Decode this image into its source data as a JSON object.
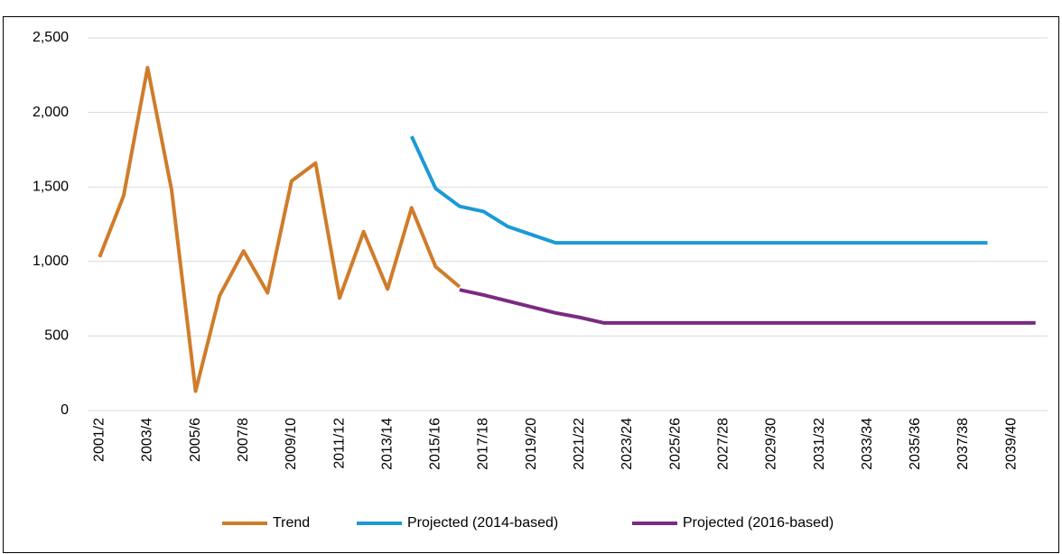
{
  "chart_data": {
    "type": "line",
    "categories": [
      "2001/2",
      null,
      "2003/4",
      null,
      "2005/6",
      null,
      "2007/8",
      null,
      "2009/10",
      null,
      "2011/12",
      null,
      "2013/14",
      null,
      "2015/16",
      null,
      "2017/18",
      null,
      "2019/20",
      null,
      "2021/22",
      null,
      "2023/24",
      null,
      "2025/26",
      null,
      "2027/28",
      null,
      "2029/30",
      null,
      "2031/32",
      null,
      "2033/34",
      null,
      "2035/36",
      null,
      "2037/38",
      null,
      "2039/40",
      null
    ],
    "series": [
      {
        "name": "Trend",
        "color": "#d07c2a",
        "values": [
          1030,
          1440,
          2300,
          1480,
          130,
          770,
          1070,
          790,
          1540,
          1660,
          755,
          1200,
          815,
          1360,
          965,
          830,
          null,
          null,
          null,
          null,
          null,
          null,
          null,
          null,
          null,
          null,
          null,
          null,
          null,
          null,
          null,
          null,
          null,
          null,
          null,
          null,
          null,
          null,
          null,
          null
        ]
      },
      {
        "name": "Projected (2014-based)",
        "color": "#1c9ad6",
        "values": [
          null,
          null,
          null,
          null,
          null,
          null,
          null,
          null,
          null,
          null,
          null,
          null,
          null,
          1840,
          1490,
          1370,
          1335,
          1235,
          1180,
          1125,
          1125,
          1125,
          1125,
          1125,
          1125,
          1125,
          1125,
          1125,
          1125,
          1125,
          1125,
          1125,
          1125,
          1125,
          1125,
          1125,
          1125,
          1125,
          null,
          null
        ]
      },
      {
        "name": "Projected (2016-based)",
        "color": "#7a2b82",
        "values": [
          null,
          null,
          null,
          null,
          null,
          null,
          null,
          null,
          null,
          null,
          null,
          null,
          null,
          null,
          null,
          810,
          775,
          735,
          695,
          655,
          625,
          588,
          588,
          588,
          588,
          588,
          588,
          588,
          588,
          588,
          588,
          588,
          588,
          588,
          588,
          588,
          588,
          588,
          588,
          588
        ]
      }
    ],
    "ylim": [
      0,
      2500
    ],
    "yticks": [
      0,
      500,
      {
        "value": 1000,
        "label": "1,000"
      },
      {
        "value": 1500,
        "label": "1,500"
      },
      {
        "value": 2000,
        "label": "2,000"
      },
      {
        "value": 2500,
        "label": "2,500"
      }
    ],
    "grid": true,
    "legend": "bottom"
  }
}
